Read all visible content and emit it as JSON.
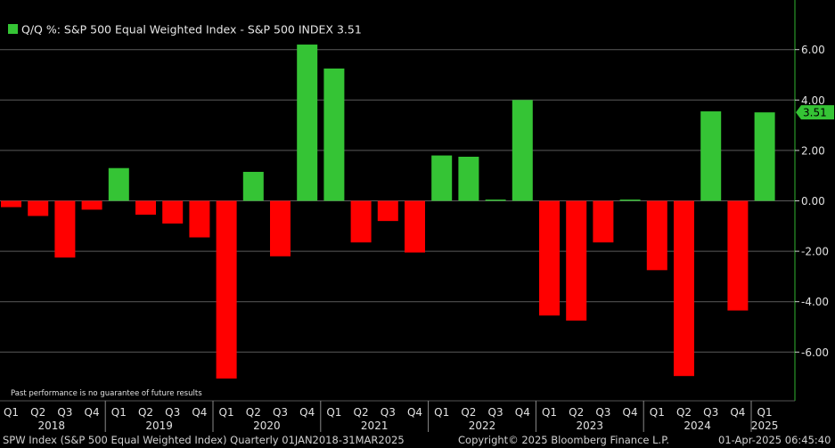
{
  "colors": {
    "background": "#000000",
    "positive": "#35c435",
    "negative": "#ff0000",
    "grid": "#5a5a5a",
    "axis_line": "#2fb52f",
    "text": "#d8d8d8"
  },
  "chart_data": {
    "type": "bar",
    "legend_label": "Q/Q %: S&P 500 Equal Weighted Index - S&P 500 INDEX 3.51",
    "note": "Past performance is no guarantee of future results",
    "last_value_label": "3.51",
    "categories": [
      "Q1",
      "Q2",
      "Q3",
      "Q4",
      "Q1",
      "Q2",
      "Q3",
      "Q4",
      "Q1",
      "Q2",
      "Q3",
      "Q4",
      "Q1",
      "Q2",
      "Q3",
      "Q4",
      "Q1",
      "Q2",
      "Q3",
      "Q4",
      "Q1",
      "Q2",
      "Q3",
      "Q4",
      "Q1",
      "Q2",
      "Q3",
      "Q4",
      "Q1"
    ],
    "years": [
      {
        "label": "2018",
        "start": 0,
        "end": 3
      },
      {
        "label": "2019",
        "start": 4,
        "end": 7
      },
      {
        "label": "2020",
        "start": 8,
        "end": 11
      },
      {
        "label": "2021",
        "start": 12,
        "end": 15
      },
      {
        "label": "2022",
        "start": 16,
        "end": 19
      },
      {
        "label": "2023",
        "start": 20,
        "end": 23
      },
      {
        "label": "2024",
        "start": 24,
        "end": 27
      },
      {
        "label": "2025",
        "start": 28,
        "end": 28
      }
    ],
    "values": [
      -0.25,
      -0.6,
      -2.25,
      -0.35,
      1.3,
      -0.55,
      -0.9,
      -1.45,
      -7.05,
      1.15,
      -2.2,
      6.2,
      5.25,
      -1.65,
      -0.8,
      -2.05,
      1.8,
      1.75,
      0.05,
      4.0,
      -4.55,
      -4.75,
      -1.65,
      0.05,
      -2.75,
      -6.95,
      3.55,
      -4.35,
      3.51
    ],
    "yticks": [
      6.0,
      4.0,
      2.0,
      0.0,
      -2.0,
      -4.0,
      -6.0
    ],
    "ytick_labels": [
      "6.00",
      "4.00",
      "2.00",
      "0.00",
      "-2.00",
      "-4.00",
      "-6.00"
    ],
    "ylim": [
      -7.6,
      7.9
    ],
    "grid": true
  },
  "footer": {
    "left": "SPW Index (S&P 500 Equal Weighted Index)  Quarterly 01JAN2018-31MAR2025",
    "center": "Copyright© 2025 Bloomberg Finance L.P.",
    "right": "01-Apr-2025 06:45:40"
  }
}
